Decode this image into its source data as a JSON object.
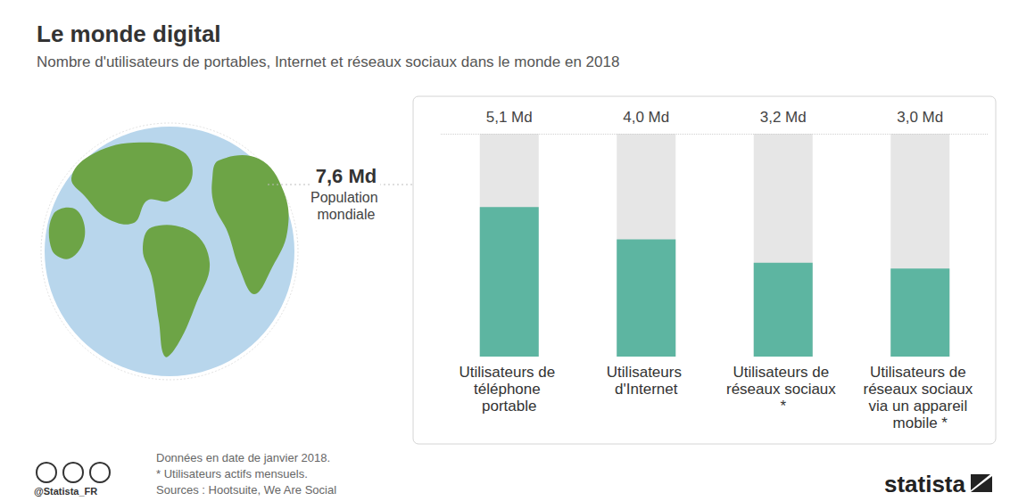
{
  "chart_data": {
    "type": "bar",
    "title": "Le monde digital",
    "subtitle": "Nombre d'utilisateurs de portables, Internet et réseaux sociaux dans le monde en 2018",
    "categories": [
      "Utilisateurs de téléphone portable",
      "Utilisateurs d'Internet",
      "Utilisateurs de réseaux sociaux *",
      "Utilisateurs de réseaux sociaux via un appareil mobile *"
    ],
    "values": [
      5.1,
      4.0,
      3.2,
      3.0
    ],
    "value_labels": [
      "5,1 Md",
      "4,0 Md",
      "3,2 Md",
      "3,0 Md"
    ],
    "color": "#5db5a1",
    "ylim": [
      0,
      7.6
    ],
    "grid": false,
    "data_labels": true,
    "tick_labels": "x",
    "population": {
      "value": 7.6,
      "label": "7,6 Md",
      "text": "Population mondiale"
    },
    "notes": [
      "Données en date de janvier 2018.",
      "* Utilisateurs actifs mensuels.",
      "Sources : Hootsuite, We Are Social"
    ],
    "handle": "@Statista_FR",
    "brand": "statista"
  }
}
